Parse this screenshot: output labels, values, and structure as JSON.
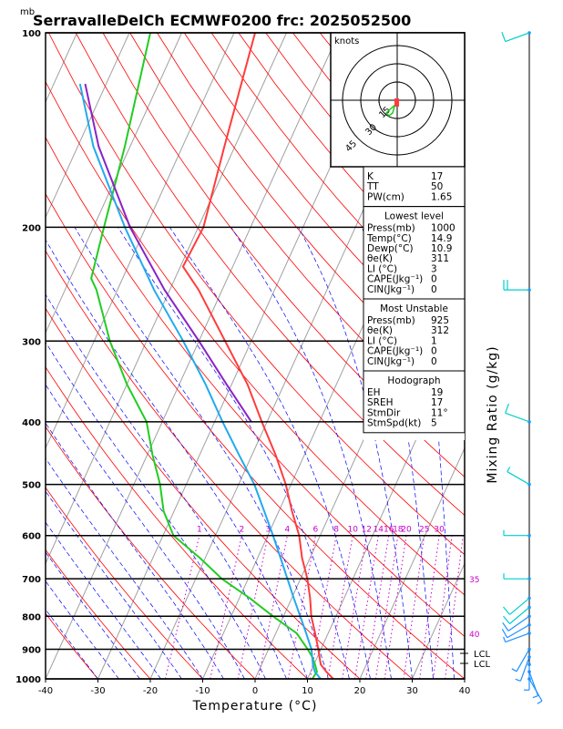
{
  "header": {
    "unit_label": "mb",
    "title": "SerravalleDelCh ECMWF0200 frc: 2025052500"
  },
  "axes": {
    "xlabel": "Temperature (°C)",
    "right_label": "Mixing Ratio (g/kg)"
  },
  "hodograph": {
    "unit": "knots",
    "ring_labels": [
      "15",
      "30",
      "45"
    ]
  },
  "indices": {
    "basic": [
      {
        "label": "K",
        "value": "17"
      },
      {
        "label": "TT",
        "value": "50"
      },
      {
        "label": "PW(cm)",
        "value": "1.65"
      }
    ],
    "lowest_title": "Lowest level",
    "lowest": [
      {
        "label": "Press(mb)",
        "value": "1000"
      },
      {
        "label": "Temp(°C)",
        "value": "14.9"
      },
      {
        "label": "Dewp(°C)",
        "value": "10.9"
      },
      {
        "label": "θe(K)",
        "value": "311"
      },
      {
        "label": "LI (°C)",
        "value": "3"
      },
      {
        "label": "CAPE(Jkg⁻¹)",
        "value": "0"
      },
      {
        "label": "CIN(Jkg⁻¹)",
        "value": "0"
      }
    ],
    "unstable_title": "Most Unstable",
    "unstable": [
      {
        "label": "Press(mb)",
        "value": "925"
      },
      {
        "label": "θe(K)",
        "value": "312"
      },
      {
        "label": "LI (°C)",
        "value": "1"
      },
      {
        "label": "CAPE(Jkg⁻¹)",
        "value": "0"
      },
      {
        "label": "CIN(Jkg⁻¹)",
        "value": "0"
      }
    ],
    "hodo_title": "Hodograph",
    "hodo": [
      {
        "label": "EH",
        "value": "19"
      },
      {
        "label": "SREH",
        "value": "17"
      },
      {
        "label": "StmDir",
        "value": "11°"
      },
      {
        "label": "StmSpd(kt)",
        "value": "5"
      }
    ]
  },
  "lcl_label": "LCL",
  "colors": {
    "temperature": "#ff3c3c",
    "dewpoint": "#22cc22",
    "parcel": "#8a22c8",
    "wetbulb": "#22aaee",
    "dry_adiabat": "#ff0000",
    "moist_adiabat": "#0000ff",
    "mixing_ratio": "#c800c8",
    "isotherm": "#a0a0a0"
  },
  "chart_data": {
    "type": "line",
    "yscale": "log",
    "xlim": [
      -40,
      40
    ],
    "ylim": [
      1000,
      100
    ],
    "xticks": [
      -40,
      -30,
      -20,
      -10,
      0,
      10,
      20,
      30,
      40
    ],
    "yticks": [
      100,
      200,
      300,
      400,
      500,
      600,
      700,
      800,
      900,
      1000
    ],
    "mixing_ratio_labels": [
      "1",
      "2",
      "3",
      "4",
      "6",
      "8",
      "10",
      "12",
      "14",
      "16",
      "18",
      "20",
      "25",
      "30",
      "35",
      "40"
    ],
    "series": [
      {
        "key": "temperature",
        "points": [
          [
            1000,
            14.9
          ],
          [
            975,
            13
          ],
          [
            950,
            11.3
          ],
          [
            925,
            10.4
          ],
          [
            900,
            9.5
          ],
          [
            850,
            7.5
          ],
          [
            800,
            5.3
          ],
          [
            750,
            3.5
          ],
          [
            700,
            1.3
          ],
          [
            650,
            -1.5
          ],
          [
            600,
            -4
          ],
          [
            550,
            -7.5
          ],
          [
            500,
            -11
          ],
          [
            450,
            -15.5
          ],
          [
            400,
            -21
          ],
          [
            350,
            -27
          ],
          [
            300,
            -35
          ],
          [
            250,
            -44.5
          ],
          [
            230,
            -49.5
          ],
          [
            200,
            -49
          ],
          [
            150,
            -52
          ],
          [
            100,
            -56
          ]
        ]
      },
      {
        "key": "dewpoint",
        "points": [
          [
            1000,
            10.9
          ],
          [
            975,
            11.2
          ],
          [
            950,
            10.2
          ],
          [
            925,
            9
          ],
          [
            900,
            7.5
          ],
          [
            850,
            4
          ],
          [
            800,
            -2
          ],
          [
            750,
            -8
          ],
          [
            700,
            -15
          ],
          [
            650,
            -21
          ],
          [
            600,
            -28
          ],
          [
            550,
            -32
          ],
          [
            500,
            -35
          ],
          [
            450,
            -39
          ],
          [
            400,
            -43
          ],
          [
            350,
            -50
          ],
          [
            300,
            -57
          ],
          [
            250,
            -64
          ],
          [
            240,
            -66
          ],
          [
            200,
            -68
          ],
          [
            150,
            -71
          ],
          [
            100,
            -76
          ]
        ]
      },
      {
        "key": "parcel",
        "points": [
          [
            400,
            -23
          ],
          [
            350,
            -31
          ],
          [
            300,
            -40
          ],
          [
            250,
            -51
          ],
          [
            200,
            -63
          ],
          [
            150,
            -76
          ],
          [
            120,
            -84
          ]
        ]
      },
      {
        "key": "wetbulb",
        "points": [
          [
            1000,
            12.5
          ],
          [
            975,
            10.8
          ],
          [
            950,
            9.8
          ],
          [
            925,
            9
          ],
          [
            900,
            8.2
          ],
          [
            850,
            5.8
          ],
          [
            800,
            3.2
          ],
          [
            750,
            0.4
          ],
          [
            700,
            -2.5
          ],
          [
            650,
            -5.6
          ],
          [
            600,
            -9
          ],
          [
            550,
            -12.8
          ],
          [
            500,
            -17
          ],
          [
            450,
            -22.5
          ],
          [
            400,
            -28.5
          ],
          [
            350,
            -35
          ],
          [
            300,
            -43
          ],
          [
            250,
            -53
          ],
          [
            200,
            -64
          ],
          [
            150,
            -77
          ],
          [
            120,
            -85
          ]
        ]
      }
    ],
    "wind_barbs": [
      {
        "p": 1000,
        "dir": 150,
        "kt": 5
      },
      {
        "p": 975,
        "dir": 160,
        "kt": 5
      },
      {
        "p": 950,
        "dir": 180,
        "kt": 5
      },
      {
        "p": 925,
        "dir": 200,
        "kt": 5
      },
      {
        "p": 900,
        "dir": 210,
        "kt": 5
      },
      {
        "p": 850,
        "dir": 250,
        "kt": 5
      },
      {
        "p": 825,
        "dir": 240,
        "kt": 10
      },
      {
        "p": 800,
        "dir": 235,
        "kt": 10
      },
      {
        "p": 775,
        "dir": 230,
        "kt": 10
      },
      {
        "p": 750,
        "dir": 230,
        "kt": 10
      },
      {
        "p": 700,
        "dir": 270,
        "kt": 5
      },
      {
        "p": 600,
        "dir": 270,
        "kt": 5
      },
      {
        "p": 500,
        "dir": 300,
        "kt": 5
      },
      {
        "p": 400,
        "dir": 290,
        "kt": 10
      },
      {
        "p": 250,
        "dir": 270,
        "kt": 20
      },
      {
        "p": 100,
        "dir": 250,
        "kt": 10
      }
    ]
  }
}
